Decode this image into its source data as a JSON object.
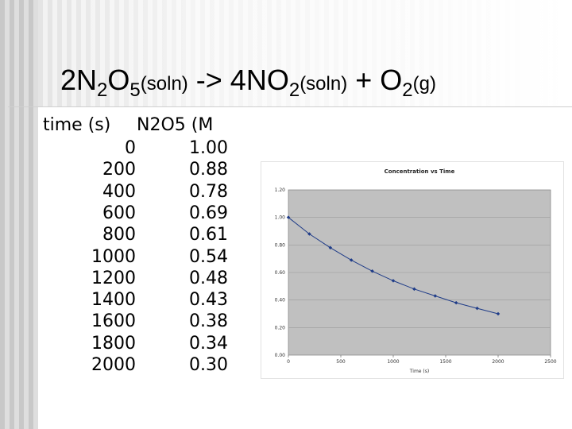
{
  "title": {
    "coef1": "2",
    "formula1_a": "N",
    "formula1_sub1": "2",
    "formula1_b": "O",
    "formula1_sub2": "5",
    "state1": "(soln)",
    "arrow": " -> ",
    "coef2": "4",
    "formula2_a": "NO",
    "formula2_sub": "2",
    "state2": "(soln)",
    "plus": " + ",
    "formula3_a": "O",
    "formula3_sub": "2",
    "state3": "(g)"
  },
  "table": {
    "headers": [
      "time (s)",
      "N2O5 (M"
    ],
    "rows": [
      [
        "0",
        "1.00"
      ],
      [
        "200",
        "0.88"
      ],
      [
        "400",
        "0.78"
      ],
      [
        "600",
        "0.69"
      ],
      [
        "800",
        "0.61"
      ],
      [
        "1000",
        "0.54"
      ],
      [
        "1200",
        "0.48"
      ],
      [
        "1400",
        "0.43"
      ],
      [
        "1600",
        "0.38"
      ],
      [
        "1800",
        "0.34"
      ],
      [
        "2000",
        "0.30"
      ]
    ]
  },
  "colors": {
    "plot_bg": "#c0c0c0",
    "series": "#1f3c88",
    "grid": "#9a9a9a"
  },
  "chart_data": {
    "type": "line",
    "title": "Concentration vs Time",
    "xlabel": "Time (s)",
    "ylabel": "",
    "xlim": [
      0,
      2500
    ],
    "ylim": [
      0,
      1.2
    ],
    "x_ticks": [
      0,
      500,
      1000,
      1500,
      2000,
      2500
    ],
    "y_ticks": [
      0,
      0.2,
      0.4,
      0.6,
      0.8,
      1.0,
      1.2
    ],
    "y_tick_labels": [
      "0.00",
      "0.20",
      "0.40",
      "0.60",
      "0.80",
      "1.00",
      "1.20"
    ],
    "grid": true,
    "legend": "none",
    "series": [
      {
        "x": [
          0,
          200,
          400,
          600,
          800,
          1000,
          1200,
          1400,
          1600,
          1800,
          2000
        ],
        "values": [
          1.0,
          0.88,
          0.78,
          0.69,
          0.61,
          0.54,
          0.48,
          0.43,
          0.38,
          0.34,
          0.3
        ]
      }
    ]
  }
}
